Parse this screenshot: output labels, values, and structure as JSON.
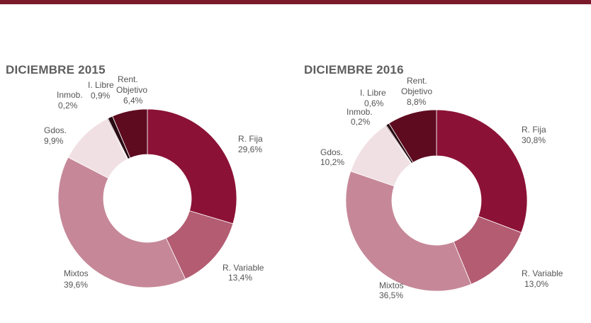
{
  "chart_data": [
    {
      "type": "pie",
      "title": "DICIEMBRE 2015",
      "slices": [
        {
          "label": "R. Fija",
          "value": 29.6,
          "text": "29,6%",
          "color": "#8b1236"
        },
        {
          "label": "R. Variable",
          "value": 13.4,
          "text": "13,4%",
          "color": "#b35c72"
        },
        {
          "label": "Mixtos",
          "value": 39.6,
          "text": "39,6%",
          "color": "#c68898"
        },
        {
          "label": "Gdos.",
          "value": 9.9,
          "text": "9,9%",
          "color": "#f0e0e4"
        },
        {
          "label": "Inmob.",
          "value": 0.2,
          "text": "0,2%",
          "color": "#a6808a"
        },
        {
          "label": "I. Libre",
          "value": 0.9,
          "text": "0,9%",
          "color": "#2a0c14"
        },
        {
          "label": "Rent. Objetivo",
          "value": 6.4,
          "text": "6,4%",
          "color": "#5e0b20"
        }
      ]
    },
    {
      "type": "pie",
      "title": "DICIEMBRE 2016",
      "slices": [
        {
          "label": "R. Fija",
          "value": 30.8,
          "text": "30,8%",
          "color": "#8b1236"
        },
        {
          "label": "R. Variable",
          "value": 13.0,
          "text": "13,0%",
          "color": "#b35c72"
        },
        {
          "label": "Mixtos",
          "value": 36.5,
          "text": "36,5%",
          "color": "#c68898"
        },
        {
          "label": "Gdos.",
          "value": 10.2,
          "text": "10,2%",
          "color": "#f0e0e4"
        },
        {
          "label": "Inmob.",
          "value": 0.2,
          "text": "0,2%",
          "color": "#a6808a"
        },
        {
          "label": "I. Libre",
          "value": 0.6,
          "text": "0,6%",
          "color": "#2a0c14"
        },
        {
          "label": "Rent. Objetivo",
          "value": 8.8,
          "text": "8,8%",
          "color": "#5e0b20"
        }
      ]
    }
  ]
}
